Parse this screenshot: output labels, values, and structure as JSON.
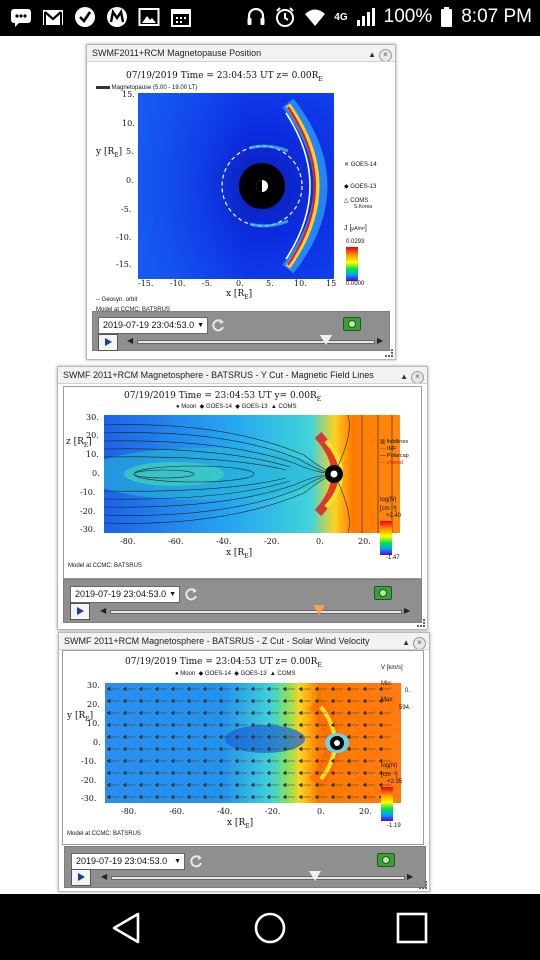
{
  "status_bar": {
    "battery": "100%",
    "time": "8:07 PM",
    "network": "4G",
    "left_icons": [
      "message-icon",
      "gmail-icon",
      "check-icon",
      "m-app-icon",
      "gallery-icon",
      "calendar-icon"
    ],
    "right_icons": [
      "headset-icon",
      "alarm-icon",
      "wifi-icon",
      "signal-icon"
    ]
  },
  "panels": [
    {
      "title": "SWMF2011+RCM Magnetopause Position",
      "plot_title": "07/19/2019 Time = 23:04:53 UT z= 0.00R",
      "plot_title_sub": "E",
      "legend_line": "Magnetopause (5.00 - 19.00 LT)",
      "y_axis_label": "y [R",
      "y_axis_sub": "E",
      "x_axis_label": "x [R",
      "x_axis_sub": "E",
      "y_ticks": [
        "15.",
        "10.",
        "5.",
        "0.",
        "-5.",
        "-10.",
        "-15."
      ],
      "x_ticks": [
        "-15.",
        "-10.",
        "-5.",
        "0.",
        "5.",
        "10.",
        "15"
      ],
      "side_labels": [
        "GOES-14",
        "GOES-13",
        "COMS"
      ],
      "coms_sub": "S.Korea",
      "colorbar_label": "J [",
      "colorbar_unit": "μA/m²",
      "colorbar_max": "0.0293",
      "colorbar_min": "0.0000",
      "footer_1": "-- Geosyn. orbit",
      "footer_2": "Model at CCMC: BATSRUS",
      "date_value": "2019-07-19 23:04:53.0",
      "slider_value": 0.8
    },
    {
      "title": "SWMF 2011+RCM Magnetosphere - BATSRUS - Y Cut - Magnetic Field Lines",
      "plot_title": "07/19/2019 Time = 23:04:53 UT y= 0.00R",
      "plot_title_sub": "E",
      "legend_items": [
        "Moon",
        "GOES-14",
        "GOES-13",
        "COMS"
      ],
      "y_axis_label": "z [R",
      "y_axis_sub": "E",
      "x_axis_label": "x [R",
      "x_axis_sub": "E",
      "y_ticks": [
        "30.",
        "20.",
        "10.",
        "0.",
        "-10.",
        "-20.",
        "-30."
      ],
      "x_ticks": [
        "-80.",
        "-60.",
        "-40.",
        "-20.",
        "0.",
        "20."
      ],
      "line_legend": [
        "fieldlines",
        "IMF",
        "Polarcap",
        "closed"
      ],
      "colorbar_label": "log(N)",
      "colorbar_unit": "[cm⁻³]",
      "colorbar_max": "+2.40",
      "colorbar_min": "-1.47",
      "footer": "Model at CCMC: BATSRUS",
      "date_value": "2019-07-19 23:04:53.0",
      "slider_value": 0.72
    },
    {
      "title": "SWMF 2011+RCM Magnetosphere - BATSRUS - Z Cut - Solar Wind Velocity",
      "plot_title": "07/19/2019 Time = 23:04:53 UT z= 0.00R",
      "plot_title_sub": "E",
      "legend_items": [
        "Moon",
        "GOES-14",
        "GOES-13",
        "COMS"
      ],
      "y_axis_label": "y [R",
      "y_axis_sub": "E",
      "x_axis_label": "x [R",
      "x_axis_sub": "E",
      "y_ticks": [
        "30.",
        "20.",
        "10.",
        "0.",
        "-10.",
        "-20.",
        "-30."
      ],
      "x_ticks": [
        "-80.",
        "-60.",
        "-40.",
        "-20.",
        "0.",
        "20."
      ],
      "vector_label": "V [km/s]",
      "vector_min_label": "Min:",
      "vector_min": "0.",
      "vector_max_label": "Max:",
      "vector_max": "594.",
      "colorbar_label": "log(N)",
      "colorbar_unit": "[cm⁻³]",
      "colorbar_max": "+2.35",
      "colorbar_min": "-1.19",
      "footer": "Model at CCMC: BATSRUS",
      "date_value": "2019-07-19 23:04:53.0",
      "slider_value": 0.7
    }
  ],
  "nav_bar": [
    "back-button",
    "home-button",
    "recents-button"
  ]
}
